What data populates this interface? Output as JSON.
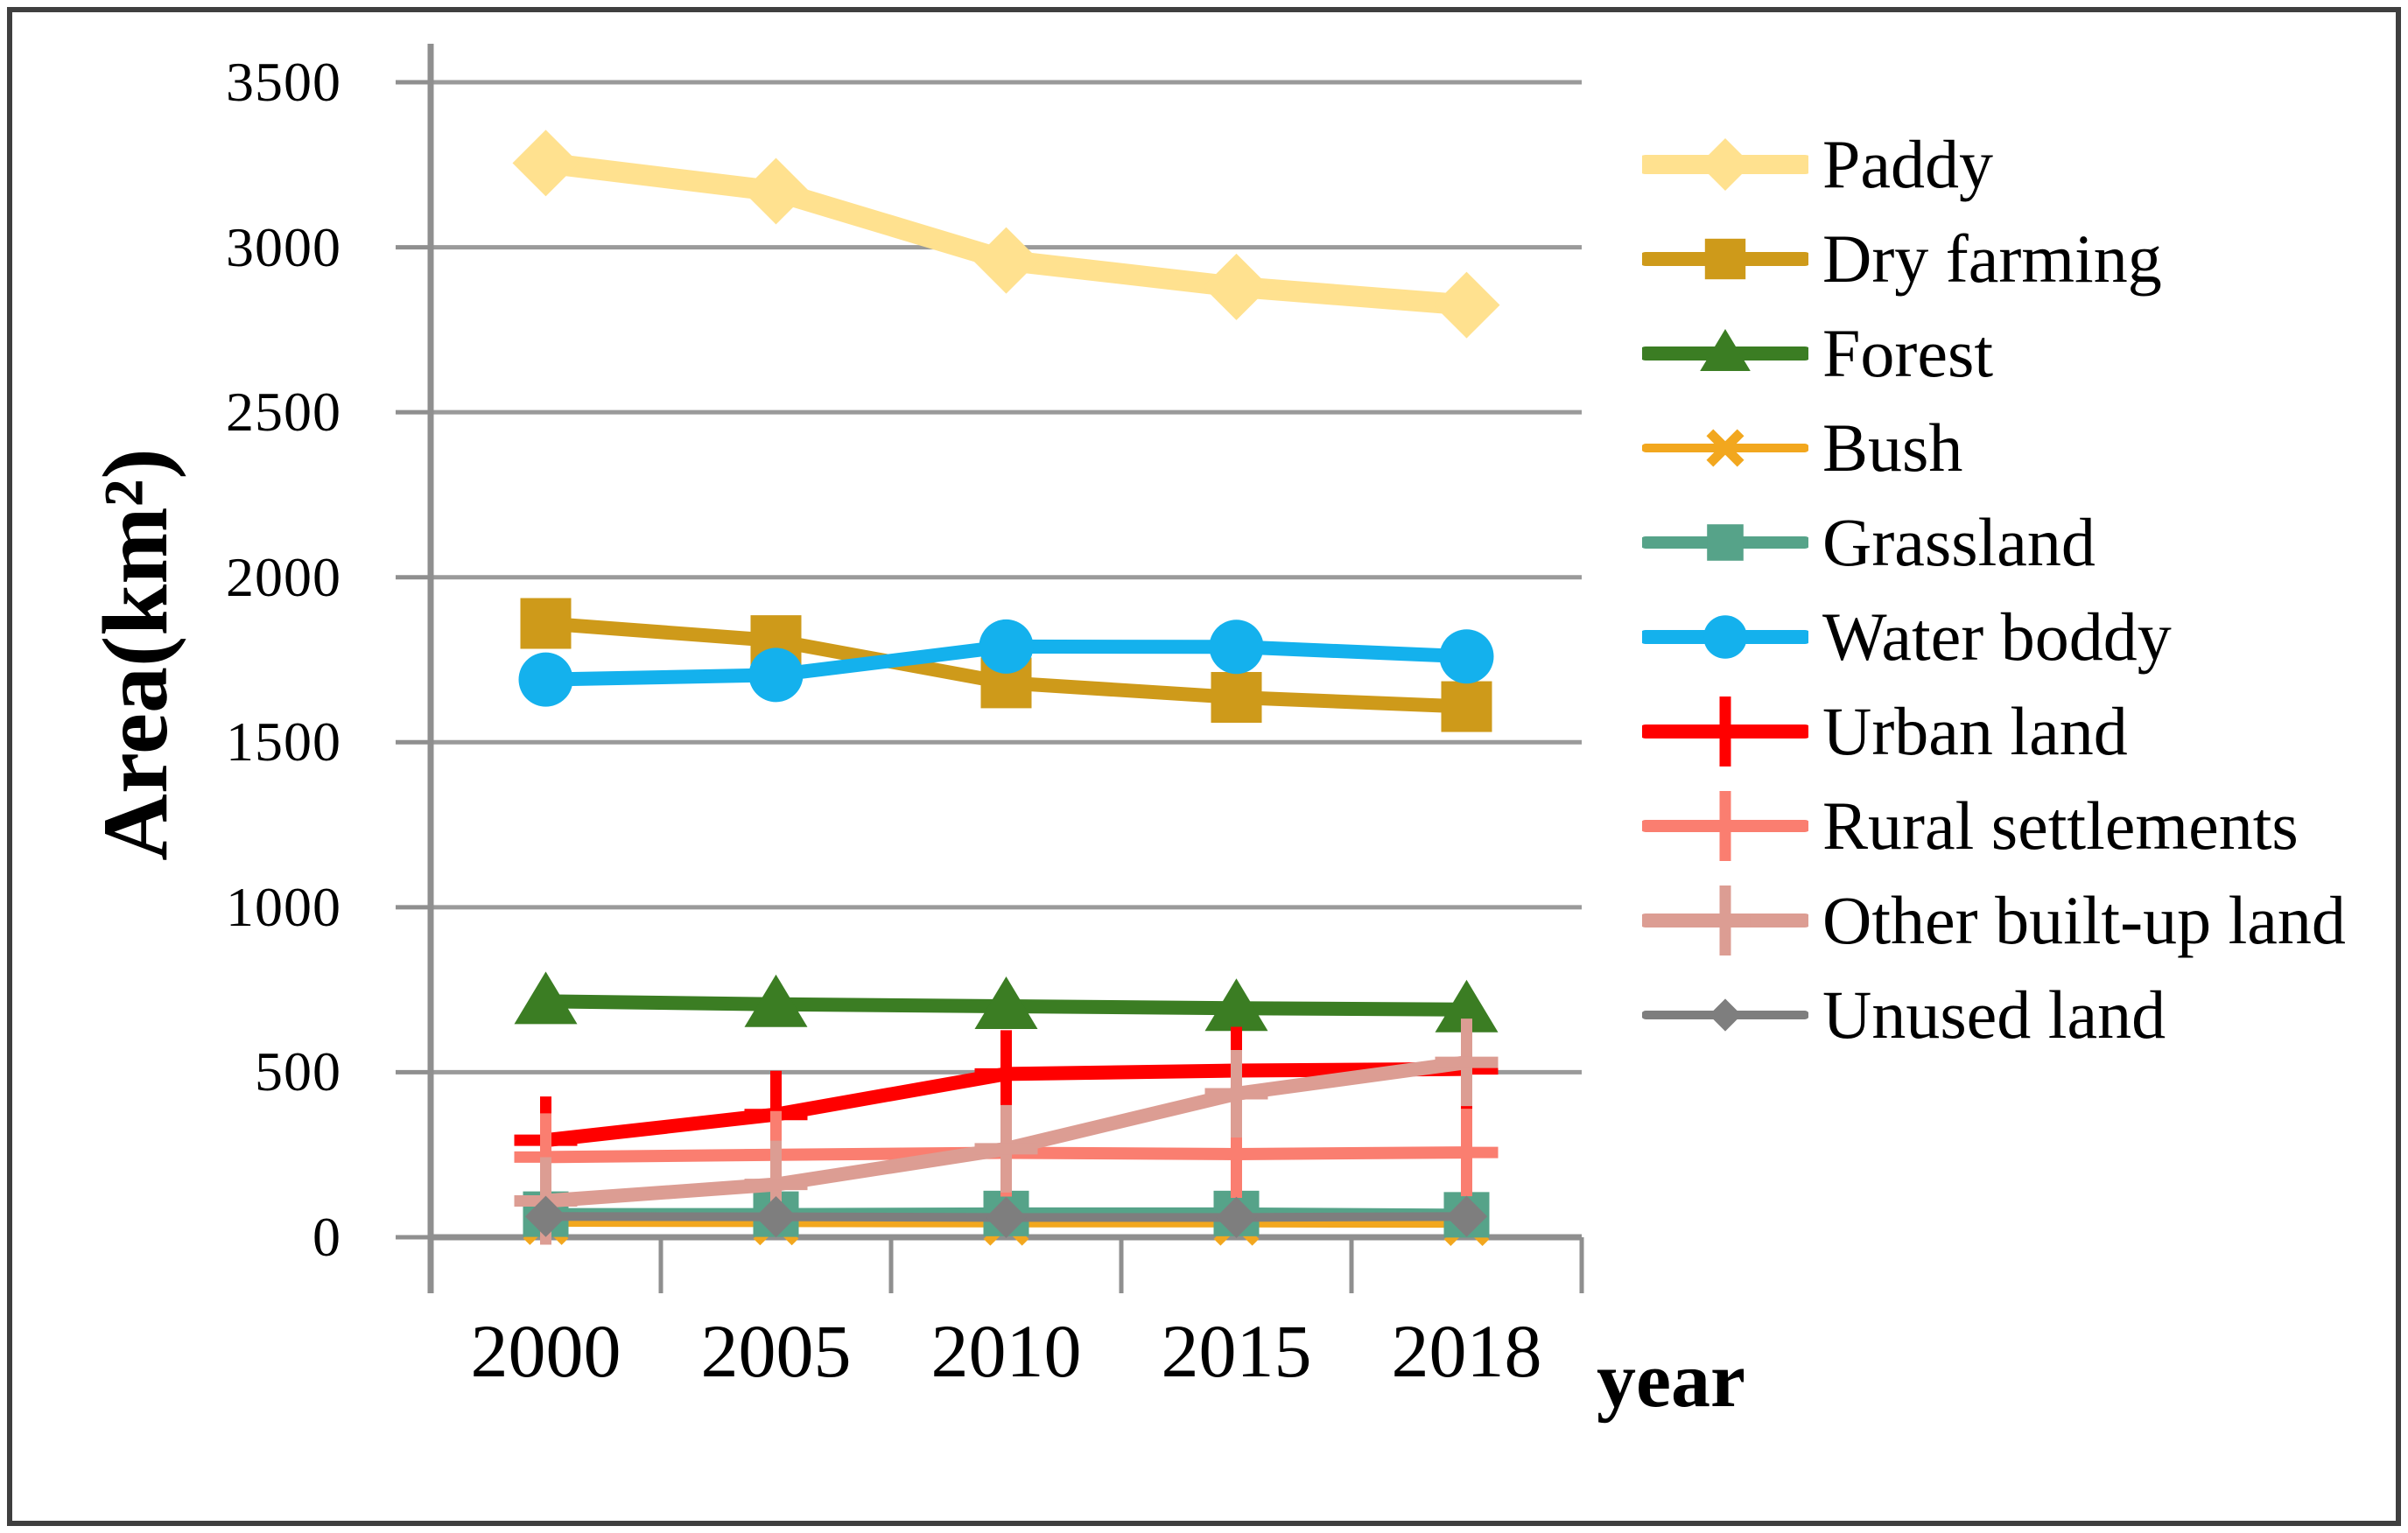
{
  "figure": {
    "y_axis_title": "Area(km²)",
    "x_axis_title": "year"
  },
  "chart_data": {
    "type": "line",
    "title": "",
    "xlabel": "year",
    "ylabel": "Area(km²)",
    "ylim": [
      0,
      3500
    ],
    "grid": "horizontal-gridlines",
    "legend_position": "right",
    "categories": [
      "2000",
      "2005",
      "2010",
      "2015",
      "2018"
    ],
    "y_tick_labels": [
      "0",
      "500",
      "1000",
      "1500",
      "2000",
      "2500",
      "3000",
      "3500"
    ],
    "y_ticks": [
      0,
      500,
      1000,
      1500,
      2000,
      2500,
      3000,
      3500
    ],
    "series": [
      {
        "name": "Paddy",
        "color": "#FFE18F",
        "marker": "diamond",
        "values": [
          3255,
          3170,
          2960,
          2880,
          2825
        ]
      },
      {
        "name": "Dry farming",
        "color": "#CE9A1A",
        "marker": "square",
        "values": [
          1860,
          1808,
          1680,
          1636,
          1608
        ]
      },
      {
        "name": "Forest",
        "color": "#3B7D23",
        "marker": "triangle",
        "values": [
          715,
          706,
          700,
          694,
          690
        ]
      },
      {
        "name": "Bush",
        "color": "#F2A71E",
        "marker": "x",
        "values": [
          45,
          44,
          43,
          43,
          42
        ]
      },
      {
        "name": "Grassland",
        "color": "#56A389",
        "marker": "square",
        "values": [
          70,
          70,
          72,
          72,
          68
        ]
      },
      {
        "name": "Water boddy",
        "color": "#14B1ED",
        "marker": "circle",
        "values": [
          1690,
          1704,
          1790,
          1789,
          1760
        ]
      },
      {
        "name": "Urban land",
        "color": "#FF0000",
        "marker": "plus",
        "values": [
          294,
          372,
          495,
          505,
          510
        ]
      },
      {
        "name": "Rural settlements",
        "color": "#FA7E70",
        "marker": "plus",
        "values": [
          243,
          250,
          256,
          252,
          257
        ]
      },
      {
        "name": "Other built-up land",
        "color": "#DC9D93",
        "marker": "plus",
        "values": [
          110,
          160,
          268,
          435,
          530
        ]
      },
      {
        "name": "Unused land",
        "color": "#7E7E7E",
        "marker": "diamond",
        "values": [
          63,
          62,
          60,
          60,
          63
        ]
      }
    ]
  },
  "colors": {
    "gridline": "#9A9A9A",
    "axis": "#8F8F8F",
    "text": "#000000",
    "frame": "#3F3F3F",
    "background": "#FFFFFF"
  }
}
